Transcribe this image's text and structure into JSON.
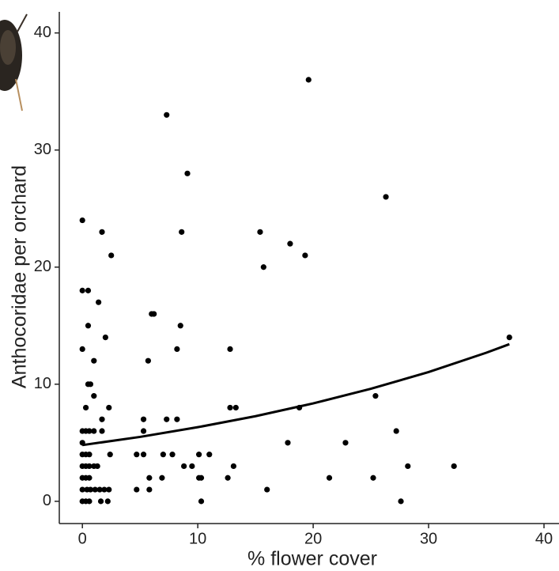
{
  "chart_data": {
    "type": "scatter",
    "x_label": "% flower cover",
    "y_label": "Anthocoridae per orchard",
    "xlim": [
      -2,
      41.3
    ],
    "ylim": [
      -1.9,
      41.8
    ],
    "xticks": [
      0,
      10,
      20,
      30,
      40
    ],
    "yticks": [
      0,
      10,
      20,
      30,
      40
    ],
    "grid": false,
    "color": "#000000",
    "points": {
      "x": [
        0,
        0,
        0.5,
        0,
        0.5,
        0.5,
        0.7,
        1,
        1.4,
        1,
        0.3,
        0,
        0.3,
        0.6,
        1,
        0,
        0,
        0.3,
        0.6,
        0,
        0.3,
        0.6,
        1,
        1.3,
        0,
        0.3,
        0.6,
        0,
        0.4,
        0.7,
        1.1,
        1.5,
        0,
        0.3,
        0.6,
        1.6,
        2.2,
        2.3,
        1.9,
        1.7,
        2.5,
        2,
        1.7,
        1.7,
        2.3,
        2.4,
        4.7,
        5.3,
        4.7,
        5.3,
        5.3,
        5.7,
        6,
        6.2,
        5.8,
        5.8,
        6.9,
        7,
        7.3,
        7.3,
        7.8,
        8.2,
        8.2,
        8.5,
        8.6,
        8.8,
        9.1,
        9.5,
        10.1,
        10.1,
        10.3,
        10.3,
        11,
        12.6,
        12.8,
        12.8,
        13.3,
        13.1,
        15.4,
        15.7,
        16,
        17.8,
        18,
        18.8,
        19.3,
        19.6,
        21.4,
        22.8,
        25.2,
        25.4,
        26.3,
        27.2,
        27.6,
        28.2,
        32.2,
        37
      ],
      "y": [
        24,
        18,
        18,
        13,
        15,
        10,
        10,
        12,
        17,
        9,
        8,
        6,
        6,
        6,
        6,
        5,
        4,
        4,
        4,
        3,
        3,
        3,
        3,
        3,
        2,
        2,
        2,
        1,
        1,
        1,
        1,
        1,
        0,
        0,
        0,
        0,
        0,
        1,
        1,
        23,
        21,
        14,
        7,
        6,
        8,
        4,
        4,
        4,
        1,
        7,
        6,
        12,
        16,
        16,
        2,
        1,
        2,
        4,
        7,
        33,
        4,
        7,
        13,
        15,
        23,
        3,
        28,
        3,
        4,
        2,
        2,
        0,
        4,
        2,
        13,
        8,
        8,
        3,
        23,
        20,
        1,
        5,
        22,
        8,
        21,
        36,
        2,
        5,
        2,
        9,
        26,
        6,
        0,
        3,
        3,
        14
      ]
    },
    "fit": {
      "x": [
        0,
        5,
        10,
        15,
        20,
        25,
        30,
        35,
        37
      ],
      "y": [
        4.8,
        5.5,
        6.33,
        7.27,
        8.36,
        9.61,
        11.04,
        12.69,
        13.42
      ]
    }
  }
}
